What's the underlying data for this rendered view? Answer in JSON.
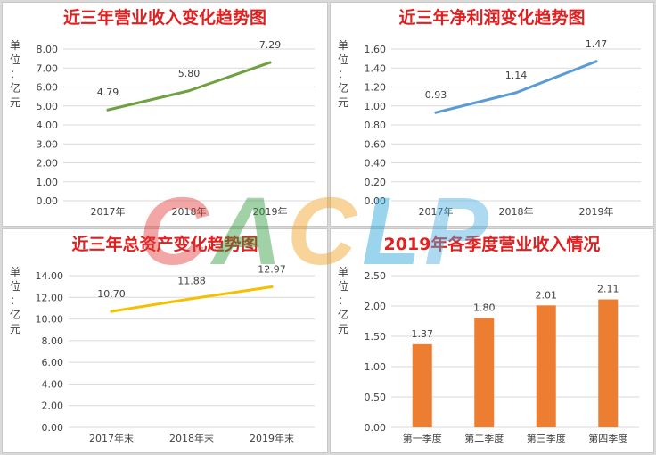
{
  "watermark": "CACLP",
  "chart_data": [
    {
      "type": "line",
      "title": "近三年营业收入变化趋势图",
      "unit_label": [
        "单",
        "位",
        "：",
        "亿",
        "元"
      ],
      "categories": [
        "2017年",
        "2018年",
        "2019年"
      ],
      "series": [
        {
          "values": [
            4.79,
            5.8,
            7.29
          ]
        }
      ],
      "data_labels": [
        "4.79",
        "5.80",
        "7.29"
      ],
      "yticks": [
        "0.00",
        "1.00",
        "2.00",
        "3.00",
        "4.00",
        "5.00",
        "6.00",
        "7.00",
        "8.00"
      ],
      "ylim": [
        0,
        8
      ],
      "grid": true,
      "color": "#70a040"
    },
    {
      "type": "line",
      "title": "近三年净利润变化趋势图",
      "unit_label": [
        "单",
        "位",
        "：",
        "亿",
        "元"
      ],
      "categories": [
        "2017年",
        "2018年",
        "2019年"
      ],
      "series": [
        {
          "values": [
            0.93,
            1.14,
            1.47
          ]
        }
      ],
      "data_labels": [
        "0.93",
        "1.14",
        "1.47"
      ],
      "yticks": [
        "0.00",
        "0.20",
        "0.40",
        "0.60",
        "0.80",
        "1.00",
        "1.20",
        "1.40",
        "1.60"
      ],
      "ylim": [
        0,
        1.6
      ],
      "grid": true,
      "color": "#5b9bd5"
    },
    {
      "type": "line",
      "title": "近三年总资产变化趋势图",
      "unit_label": [
        "单",
        "位",
        "：",
        "亿",
        "元"
      ],
      "categories": [
        "2017年末",
        "2018年末",
        "2019年末"
      ],
      "series": [
        {
          "values": [
            10.7,
            11.88,
            12.97
          ]
        }
      ],
      "data_labels": [
        "10.70",
        "11.88",
        "12.97"
      ],
      "yticks": [
        "0.00",
        "2.00",
        "4.00",
        "6.00",
        "8.00",
        "10.00",
        "12.00",
        "14.00"
      ],
      "ylim": [
        0,
        14
      ],
      "grid": true,
      "color": "#f5c000"
    },
    {
      "type": "bar",
      "title": "2019年各季度营业收入情况",
      "unit_label": [
        "单",
        "位",
        "：",
        "亿",
        "元"
      ],
      "categories": [
        "第一季度",
        "第二季度",
        "第三季度",
        "第四季度"
      ],
      "series": [
        {
          "values": [
            1.37,
            1.8,
            2.01,
            2.11
          ]
        }
      ],
      "data_labels": [
        "1.37",
        "1.80",
        "2.01",
        "2.11"
      ],
      "yticks": [
        "0.00",
        "0.50",
        "1.00",
        "1.50",
        "2.00",
        "2.50"
      ],
      "ylim": [
        0,
        2.5
      ],
      "grid": true,
      "color": "#ed7d31"
    }
  ]
}
